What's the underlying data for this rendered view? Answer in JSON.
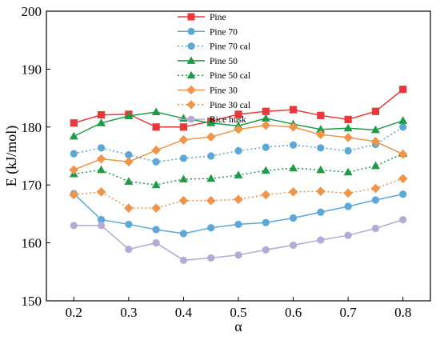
{
  "chart_data": {
    "type": "line",
    "xlabel": "α",
    "ylabel": "E (kJ/mol)",
    "xlim": [
      0.15,
      0.85
    ],
    "ylim": [
      150,
      200
    ],
    "xticks": [
      "0.2",
      "0.3",
      "0.4",
      "0.5",
      "0.6",
      "0.7",
      "0.8"
    ],
    "yticks": [
      "150",
      "160",
      "170",
      "180",
      "190",
      "200"
    ],
    "grid": false,
    "legend": "top-center",
    "x": [
      0.2,
      0.25,
      0.3,
      0.35,
      0.4,
      0.45,
      0.5,
      0.55,
      0.6,
      0.65,
      0.7,
      0.75,
      0.8
    ],
    "series": [
      {
        "name": "Pine",
        "color": "#e8383a",
        "marker": "square",
        "dashed": false,
        "values": [
          180.7,
          182.1,
          182.2,
          180.0,
          180.0,
          181.0,
          182.2,
          182.7,
          183.0,
          182.0,
          181.3,
          182.7,
          186.5
        ]
      },
      {
        "name": "Pine 70",
        "color": "#5ba8d8",
        "marker": "circle",
        "dashed": false,
        "values": [
          168.5,
          164.0,
          163.2,
          162.3,
          161.6,
          162.6,
          163.2,
          163.5,
          164.3,
          165.3,
          166.3,
          167.4,
          168.4
        ]
      },
      {
        "name": "Pine 70 cal",
        "color": "#5ba8d8",
        "marker": "circle",
        "dashed": true,
        "values": [
          175.4,
          176.4,
          175.2,
          174.0,
          174.6,
          175.0,
          175.9,
          176.5,
          176.9,
          176.4,
          175.9,
          177.0,
          180.0
        ]
      },
      {
        "name": "Pine 50",
        "color": "#1e9a48",
        "marker": "triangle",
        "dashed": false,
        "values": [
          178.4,
          180.7,
          181.9,
          182.6,
          181.5,
          180.7,
          180.2,
          181.5,
          180.5,
          179.6,
          179.8,
          179.5,
          181.1
        ]
      },
      {
        "name": "Pine 50 cal",
        "color": "#1e9a48",
        "marker": "triangle",
        "dashed": true,
        "values": [
          171.9,
          172.6,
          170.6,
          170.0,
          171.0,
          171.1,
          171.7,
          172.5,
          172.9,
          172.6,
          172.2,
          173.3,
          175.4
        ]
      },
      {
        "name": "Pine 30",
        "color": "#f0944a",
        "marker": "diamond",
        "dashed": false,
        "values": [
          172.6,
          174.5,
          174.0,
          176.0,
          177.8,
          178.3,
          179.6,
          180.3,
          180.0,
          178.7,
          178.2,
          177.5,
          175.3
        ]
      },
      {
        "name": "Pine 30 cal",
        "color": "#f0944a",
        "marker": "diamond",
        "dashed": true,
        "values": [
          168.3,
          168.8,
          166.0,
          166.0,
          167.3,
          167.3,
          167.5,
          168.3,
          168.8,
          168.9,
          168.6,
          169.4,
          171.1
        ]
      },
      {
        "name": "Rice husk",
        "color": "#b5a9d6",
        "marker": "circle",
        "dashed": false,
        "values": [
          163.0,
          163.0,
          158.9,
          160.0,
          157.0,
          157.4,
          157.9,
          158.8,
          159.6,
          160.5,
          161.3,
          162.5,
          164.0
        ]
      }
    ]
  }
}
